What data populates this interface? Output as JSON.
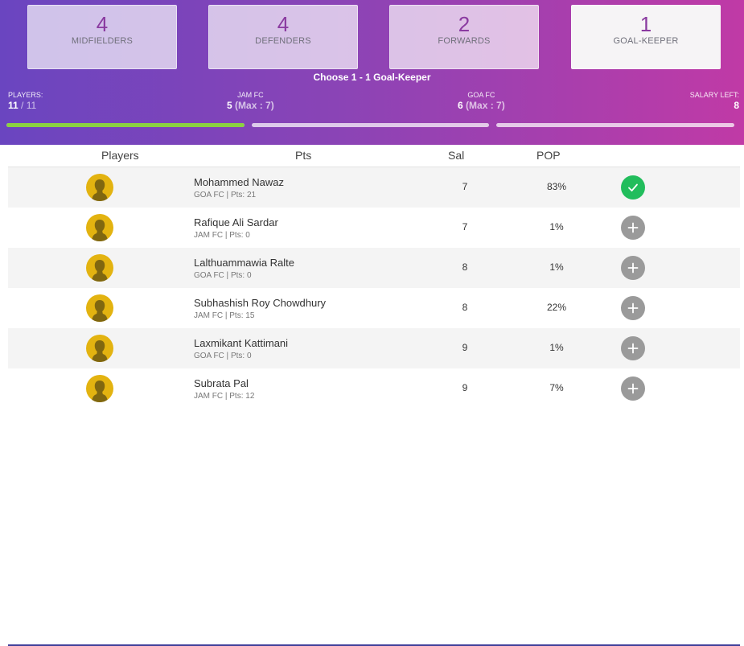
{
  "positions": [
    {
      "count": "4",
      "label": "MIDFIELDERS"
    },
    {
      "count": "4",
      "label": "DEFENDERS"
    },
    {
      "count": "2",
      "label": "FORWARDS"
    },
    {
      "count": "1",
      "label": "GOAL-KEEPER"
    }
  ],
  "instruction": "Choose 1 - 1 Goal-Keeper",
  "stats": {
    "players": {
      "label": "PLAYERS:",
      "selected": "11",
      "separator": " / ",
      "total": "11"
    },
    "team1": {
      "label": "JAM FC",
      "count": "5",
      "max": "(Max : 7)"
    },
    "team2": {
      "label": "GOA FC",
      "count": "6",
      "max": "(Max : 7)"
    },
    "salary": {
      "label": "SALARY LEFT:",
      "value": "8"
    }
  },
  "progress": {
    "bar1": 1.0,
    "bar2": 0.0,
    "bar3": 0.0
  },
  "colors": {
    "progress_fill": "#8bd141",
    "selected_action": "#22bd5c",
    "avatar": "#e3b310",
    "count_text": "#8a3aa0"
  },
  "table": {
    "headers": {
      "players": "Players",
      "pts": "Pts",
      "sal": "Sal",
      "pop": "POP"
    },
    "rows": [
      {
        "name": "Mohammed Nawaz",
        "meta": "GOA FC | Pts: 21",
        "sal": "7",
        "pop": "83%",
        "selected": true
      },
      {
        "name": "Rafique Ali Sardar",
        "meta": "JAM FC | Pts: 0",
        "sal": "7",
        "pop": "1%",
        "selected": false
      },
      {
        "name": "Lalthuammawia Ralte",
        "meta": "GOA FC | Pts: 0",
        "sal": "8",
        "pop": "1%",
        "selected": false
      },
      {
        "name": "Subhashish Roy Chowdhury",
        "meta": "JAM FC | Pts: 15",
        "sal": "8",
        "pop": "22%",
        "selected": false
      },
      {
        "name": "Laxmikant Kattimani",
        "meta": "GOA FC | Pts: 0",
        "sal": "9",
        "pop": "1%",
        "selected": false
      },
      {
        "name": "Subrata Pal",
        "meta": "JAM FC | Pts: 12",
        "sal": "9",
        "pop": "7%",
        "selected": false
      }
    ]
  },
  "icons": {
    "selected": "check-icon",
    "unselected": "plus-icon",
    "avatar": "player-silhouette-icon"
  }
}
